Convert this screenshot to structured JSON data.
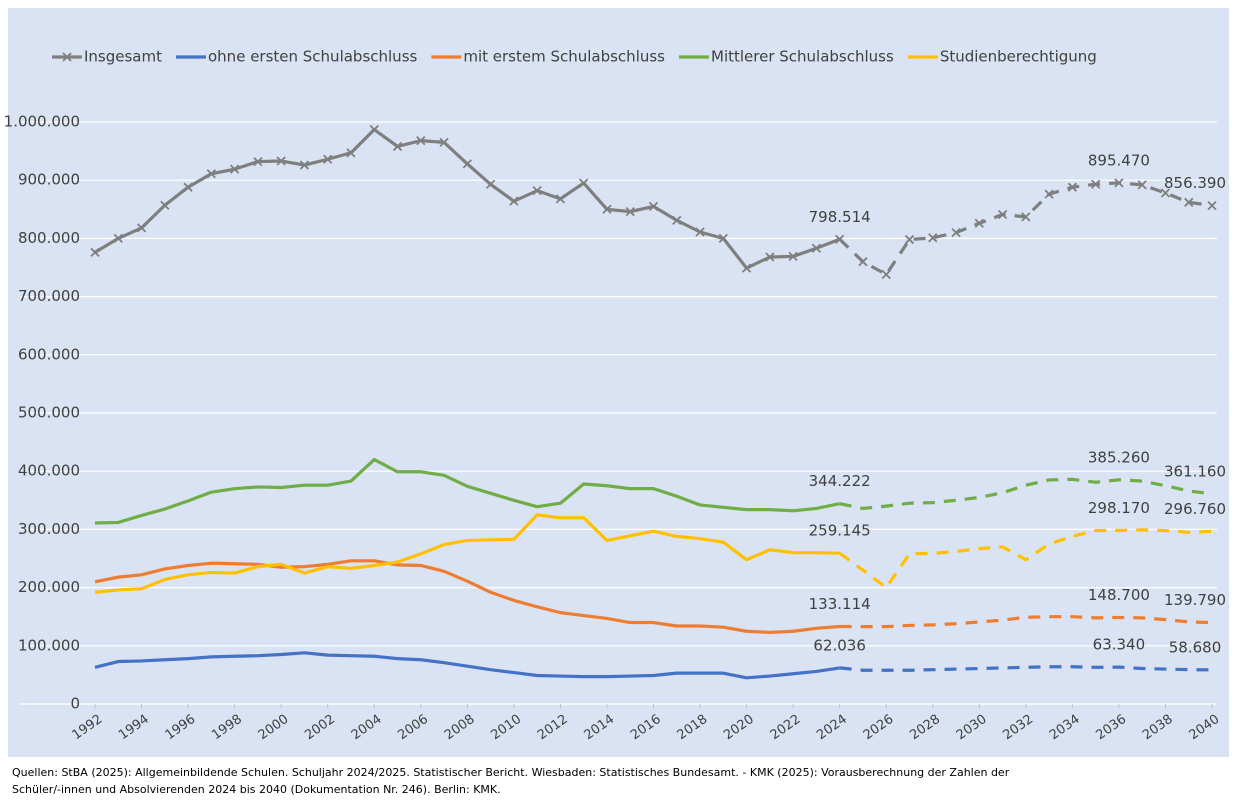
{
  "chart_data": {
    "type": "line",
    "x": [
      1992,
      1993,
      1994,
      1995,
      1996,
      1997,
      1998,
      1999,
      2000,
      2001,
      2002,
      2003,
      2004,
      2005,
      2006,
      2007,
      2008,
      2009,
      2010,
      2011,
      2012,
      2013,
      2014,
      2015,
      2016,
      2017,
      2018,
      2019,
      2020,
      2021,
      2022,
      2023,
      2024,
      2025,
      2026,
      2027,
      2028,
      2029,
      2030,
      2031,
      2032,
      2033,
      2034,
      2035,
      2036,
      2037,
      2038,
      2039,
      2040
    ],
    "xlim": [
      1992,
      2040
    ],
    "xticks": [
      1992,
      1994,
      1996,
      1998,
      2000,
      2002,
      2004,
      2006,
      2008,
      2010,
      2012,
      2014,
      2016,
      2018,
      2020,
      2022,
      2024,
      2026,
      2028,
      2030,
      2032,
      2034,
      2036,
      2038,
      2040
    ],
    "ylim": [
      0,
      1000000
    ],
    "yticks": [
      0,
      {
        "value": 100000,
        "label": "100.000"
      },
      {
        "value": 200000,
        "label": "200.000"
      },
      {
        "value": 300000,
        "label": "300.000"
      },
      {
        "value": 400000,
        "label": "400.000"
      },
      {
        "value": 500000,
        "label": "500.000"
      },
      {
        "value": 600000,
        "label": "600.000"
      },
      {
        "value": 700000,
        "label": "700.000"
      },
      {
        "value": 800000,
        "label": "800.000"
      },
      {
        "value": 900000,
        "label": "900.000"
      },
      {
        "value": 1000000,
        "label": "1.000.000"
      }
    ],
    "grid": true,
    "legend": "top",
    "dashed_from": 2024,
    "series": [
      {
        "name": "Insgesamt",
        "color": "#7f7f7f",
        "marker": "x",
        "values": [
          776000,
          800000,
          818000,
          857000,
          888000,
          911000,
          919000,
          932000,
          933000,
          926000,
          936000,
          947000,
          987000,
          958000,
          968000,
          965000,
          928000,
          893000,
          864000,
          882000,
          868000,
          895000,
          850000,
          846000,
          855000,
          831000,
          811000,
          800000,
          749000,
          768000,
          769000,
          783000,
          798514,
          760000,
          738000,
          798000,
          801000,
          810000,
          826000,
          841000,
          837000,
          876000,
          888000,
          893000,
          895470,
          892000,
          878000,
          862000,
          856390
        ],
        "value_labels": [
          null,
          null,
          null,
          null,
          null,
          null,
          null,
          null,
          null,
          null,
          null,
          null,
          null,
          null,
          null,
          null,
          null,
          null,
          null,
          null,
          null,
          null,
          null,
          null,
          null,
          null,
          null,
          null,
          null,
          null,
          null,
          null,
          "798.514",
          null,
          null,
          null,
          null,
          null,
          null,
          null,
          null,
          null,
          null,
          null,
          "895.470",
          null,
          null,
          null,
          "856.390"
        ]
      },
      {
        "name": "ohne ersten Schulabschluss",
        "color": "#4472c4",
        "values": [
          63000,
          73000,
          74000,
          76000,
          78000,
          81000,
          82000,
          83000,
          85000,
          88000,
          84000,
          83000,
          82000,
          78000,
          76000,
          71000,
          65000,
          59000,
          54000,
          49000,
          48000,
          47000,
          47000,
          48000,
          49000,
          53000,
          53000,
          53000,
          45000,
          48000,
          52000,
          56000,
          62036,
          58000,
          58000,
          58000,
          59000,
          60000,
          61000,
          62000,
          63000,
          64000,
          64000,
          63000,
          63340,
          61000,
          60000,
          59000,
          58680
        ],
        "value_labels": [
          null,
          null,
          null,
          null,
          null,
          null,
          null,
          null,
          null,
          null,
          null,
          null,
          null,
          null,
          null,
          null,
          null,
          null,
          null,
          null,
          null,
          null,
          null,
          null,
          null,
          null,
          null,
          null,
          null,
          null,
          null,
          null,
          "62.036",
          null,
          null,
          null,
          null,
          null,
          null,
          null,
          null,
          null,
          null,
          null,
          "63.340",
          null,
          null,
          null,
          "58.680"
        ]
      },
      {
        "name": "mit erstem Schulabschluss",
        "color": "#ed7d31",
        "values": [
          210000,
          218000,
          222000,
          232000,
          238000,
          242000,
          241000,
          240000,
          235000,
          236000,
          240000,
          246000,
          246000,
          239000,
          238000,
          228000,
          211000,
          192000,
          178000,
          167000,
          157000,
          152000,
          147000,
          140000,
          140000,
          134000,
          134000,
          132000,
          125000,
          123000,
          125000,
          130000,
          133114,
          133000,
          133000,
          135000,
          136000,
          138000,
          141000,
          144000,
          149000,
          150000,
          150000,
          148000,
          148700,
          148000,
          145000,
          141000,
          139790
        ],
        "value_labels": [
          null,
          null,
          null,
          null,
          null,
          null,
          null,
          null,
          null,
          null,
          null,
          null,
          null,
          null,
          null,
          null,
          null,
          null,
          null,
          null,
          null,
          null,
          null,
          null,
          null,
          null,
          null,
          null,
          null,
          null,
          null,
          null,
          "133.114",
          null,
          null,
          null,
          null,
          null,
          null,
          null,
          null,
          null,
          null,
          null,
          "148.700",
          null,
          null,
          null,
          "139.790"
        ]
      },
      {
        "name": "Mittlerer Schulabschluss",
        "color": "#70ad47",
        "values": [
          311000,
          312000,
          324000,
          335000,
          349000,
          364000,
          370000,
          373000,
          372000,
          376000,
          376000,
          383000,
          420000,
          399000,
          399000,
          393000,
          374000,
          362000,
          350000,
          339000,
          345000,
          378000,
          375000,
          370000,
          370000,
          357000,
          342000,
          338000,
          334000,
          334000,
          332000,
          336000,
          344222,
          336000,
          340000,
          345000,
          346000,
          350000,
          355000,
          363000,
          376000,
          385000,
          386000,
          381000,
          385260,
          383000,
          375000,
          366000,
          361160
        ],
        "value_labels": [
          null,
          null,
          null,
          null,
          null,
          null,
          null,
          null,
          null,
          null,
          null,
          null,
          null,
          null,
          null,
          null,
          null,
          null,
          null,
          null,
          null,
          null,
          null,
          null,
          null,
          null,
          null,
          null,
          null,
          null,
          null,
          null,
          "344.222",
          null,
          null,
          null,
          null,
          null,
          null,
          null,
          null,
          null,
          null,
          null,
          "385.260",
          null,
          null,
          null,
          "361.160"
        ]
      },
      {
        "name": "Studienberechtigung",
        "color": "#ffc000",
        "values": [
          192000,
          196000,
          198000,
          214000,
          222000,
          226000,
          225000,
          236000,
          240000,
          225000,
          236000,
          233000,
          238000,
          244000,
          258000,
          274000,
          281000,
          282000,
          283000,
          325000,
          320000,
          320000,
          281000,
          289000,
          297000,
          288000,
          284000,
          278000,
          248000,
          265000,
          260000,
          260000,
          259145,
          230000,
          200000,
          258000,
          259000,
          262000,
          267000,
          270000,
          248000,
          275000,
          288000,
          298000,
          298170,
          299000,
          298000,
          295000,
          296760
        ],
        "value_labels": [
          null,
          null,
          null,
          null,
          null,
          null,
          null,
          null,
          null,
          null,
          null,
          null,
          null,
          null,
          null,
          null,
          null,
          null,
          null,
          null,
          null,
          null,
          null,
          null,
          null,
          null,
          null,
          null,
          null,
          null,
          null,
          null,
          "259.145",
          null,
          null,
          null,
          null,
          null,
          null,
          null,
          null,
          null,
          null,
          null,
          "298.170",
          null,
          null,
          null,
          "296.760"
        ]
      }
    ],
    "source": [
      "Quellen: StBA (2025): Allgemeinbildende Schulen. Schuljahr 2024/2025. Statistischer Bericht. Wiesbaden: Statistisches Bundesamt. - KMK (2025): Vorausberechnung der Zahlen der",
      "Schüler/-innen und Absolvierenden 2024 bis 2040 (Dokumentation Nr. 246). Berlin: KMK."
    ]
  }
}
